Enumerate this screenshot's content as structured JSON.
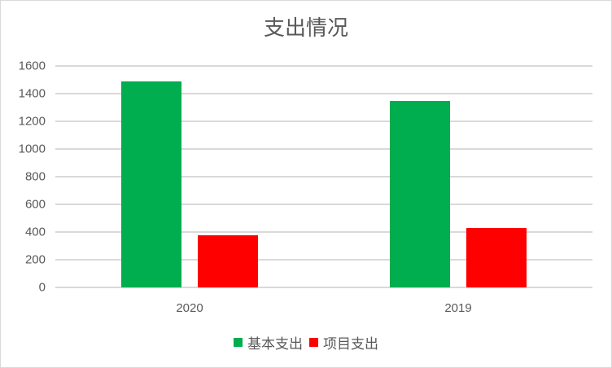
{
  "chart_data": {
    "type": "bar",
    "title": "支出情况",
    "categories": [
      "2020",
      "2019"
    ],
    "series": [
      {
        "name": "基本支出",
        "color": "#00AD4F",
        "values": [
          1488,
          1347
        ]
      },
      {
        "name": "项目支出",
        "color": "#FF0000",
        "values": [
          376,
          429
        ]
      }
    ],
    "xlabel": "",
    "ylabel": "",
    "ylim": [
      0,
      1600
    ],
    "yticks": [
      "0",
      "200",
      "400",
      "600",
      "800",
      "1000",
      "1200",
      "1400",
      "1600"
    ],
    "grid": true,
    "legend_position": "bottom"
  }
}
